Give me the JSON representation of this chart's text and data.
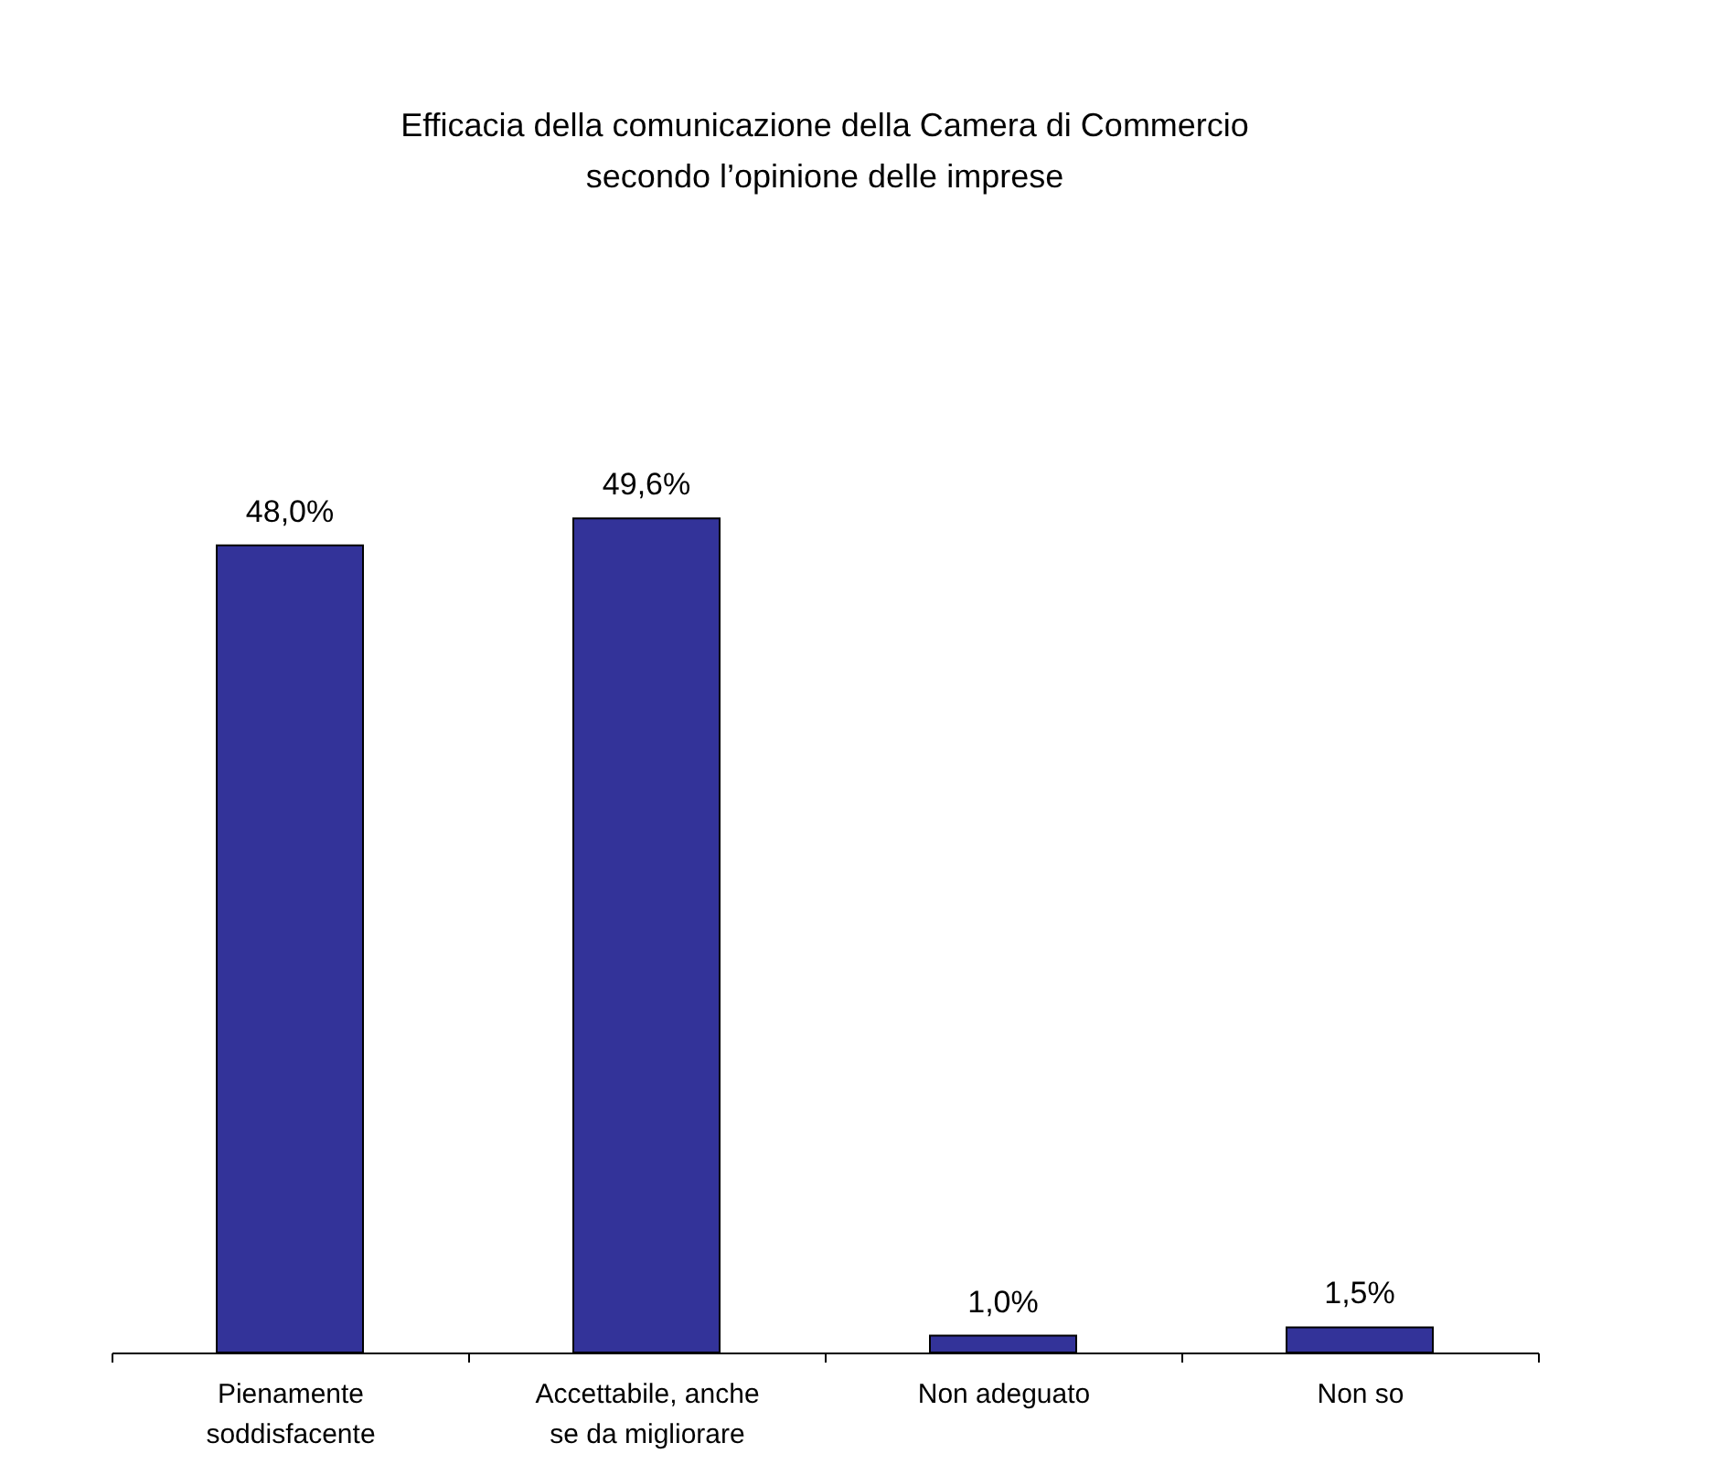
{
  "chart_data": {
    "type": "bar",
    "title": "Efficacia della comunicazione della Camera di Commercio\nsecondo l’opinione delle imprese",
    "categories": [
      "Pienamente\nsoddisfacente",
      "Accettabile, anche\nse da migliorare",
      "Non adeguato",
      "Non so"
    ],
    "values": [
      48.0,
      49.6,
      1.0,
      1.5
    ],
    "value_labels": [
      "48,0%",
      "49,6%",
      "1,0%",
      "1,5%"
    ],
    "color": "#333399"
  }
}
